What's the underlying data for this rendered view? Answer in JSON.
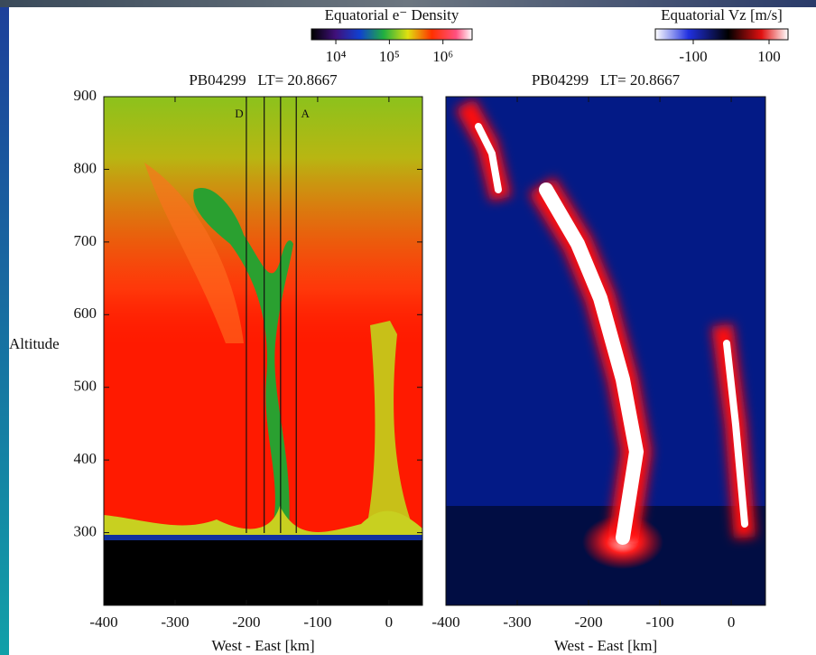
{
  "chart_data": [
    {
      "type": "heatmap",
      "title": "PB04299   LT= 20.8667",
      "xlabel": "West - East [km]",
      "ylabel": "Altitude",
      "xlim": [
        -400,
        47
      ],
      "ylim": [
        200,
        900
      ],
      "xticks": [
        -400,
        -300,
        -200,
        -100,
        0
      ],
      "yticks": [
        300,
        400,
        500,
        600,
        700,
        800,
        900
      ],
      "colorbar": {
        "title": "Equatorial e⁻ Density",
        "log": true,
        "clim": [
          3500,
          3500000
        ],
        "ticks": [
          {
            "value": 10000,
            "label": "10⁴"
          },
          {
            "value": 100000,
            "label": "10⁵"
          },
          {
            "value": 1000000,
            "label": "10⁶"
          }
        ]
      },
      "lines": [
        {
          "x": -200,
          "label": "D"
        },
        {
          "x": -175
        },
        {
          "x": -152
        },
        {
          "x": -130,
          "label": "A"
        }
      ]
    },
    {
      "type": "heatmap",
      "title": "PB04299   LT= 20.8667",
      "xlabel": "West - East [km]",
      "xlim": [
        -400,
        48
      ],
      "ylim": [
        200,
        900
      ],
      "xticks": [
        -400,
        -300,
        -200,
        -100,
        0
      ],
      "colorbar": {
        "title": "Equatorial Vz [m/s]",
        "log": false,
        "clim": [
          -200,
          150
        ],
        "ticks": [
          -100,
          100
        ]
      }
    }
  ]
}
